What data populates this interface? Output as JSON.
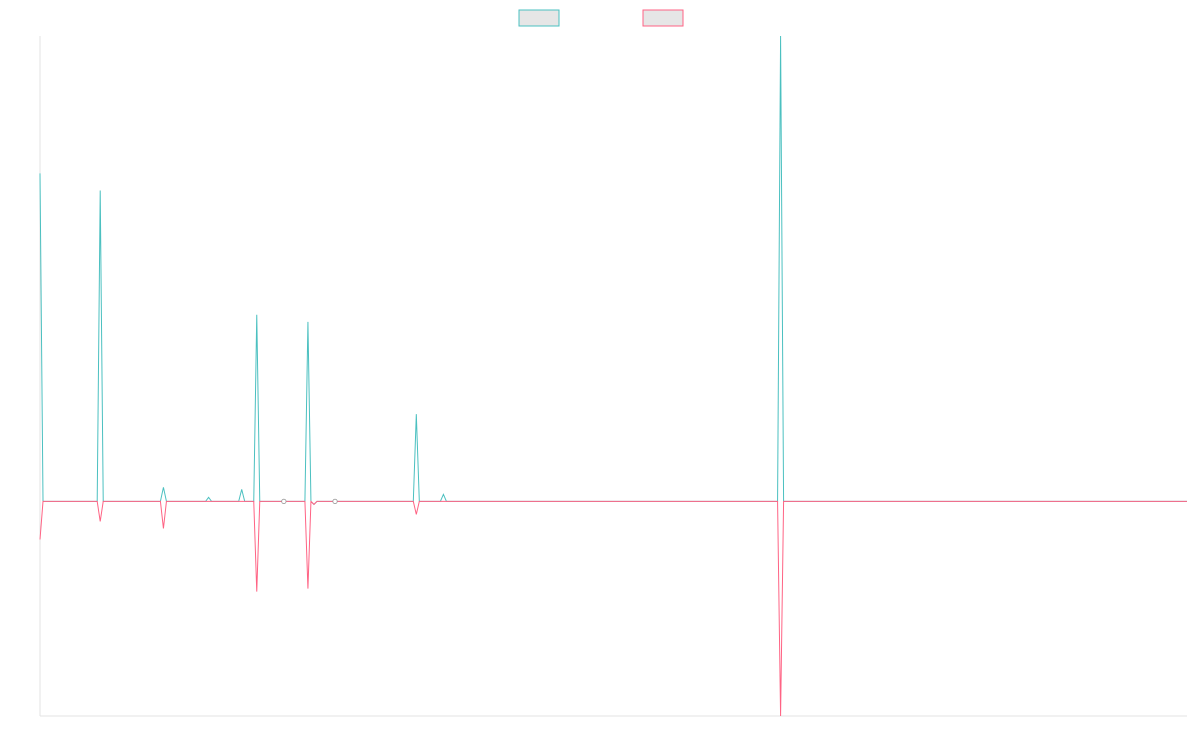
{
  "chart_data": {
    "type": "line",
    "title": "",
    "xlabel": "",
    "ylabel": "",
    "x": [
      0,
      1,
      2,
      3,
      4,
      5,
      6,
      7,
      8,
      9,
      10,
      11,
      12,
      13,
      14,
      15,
      16,
      17,
      18,
      19,
      20,
      21,
      22,
      23,
      24,
      25,
      26,
      27,
      28,
      29,
      30,
      31,
      32,
      33,
      34,
      35,
      36,
      37,
      38,
      39,
      40,
      41,
      42,
      43,
      44,
      45,
      46,
      47,
      48,
      49,
      50,
      51,
      52,
      53,
      54,
      55,
      56,
      57,
      58,
      59,
      60,
      61,
      62,
      63,
      64,
      65,
      66,
      67,
      68,
      69,
      70,
      71,
      72,
      73,
      74,
      75,
      76,
      77,
      78,
      79,
      80,
      81,
      82,
      83,
      84,
      85,
      86,
      87,
      88,
      89,
      90,
      91,
      92,
      93,
      94,
      95,
      96,
      97,
      98,
      99,
      100,
      101,
      102,
      103,
      104,
      105,
      106,
      107,
      108,
      109,
      110,
      111,
      112,
      113,
      114,
      115,
      116,
      117,
      118,
      119,
      120,
      121,
      122,
      123,
      124,
      125,
      126,
      127,
      128,
      129,
      130,
      131,
      132,
      133,
      134,
      135,
      136,
      137,
      138,
      139,
      140,
      141,
      142,
      143,
      144,
      145,
      146,
      147,
      148,
      149,
      150,
      151,
      152,
      153,
      154,
      155,
      156,
      157,
      158,
      159,
      160,
      161,
      162,
      163,
      164,
      165,
      166,
      167,
      168,
      169,
      170,
      171,
      172,
      173,
      174,
      175,
      176,
      177,
      178,
      179,
      180,
      181,
      182,
      183,
      184,
      185,
      186,
      187,
      188,
      189,
      190,
      191,
      192,
      193,
      194,
      195,
      196,
      197,
      198,
      199,
      200,
      201,
      202,
      203,
      204,
      205,
      206,
      207,
      208,
      209,
      210,
      211,
      212,
      213,
      214,
      215,
      216,
      217,
      218,
      219,
      220,
      221,
      222,
      223,
      224,
      225,
      226,
      227,
      228,
      229,
      230,
      231,
      232,
      233,
      234,
      235,
      236,
      237,
      238,
      239,
      240,
      241,
      242,
      243,
      244,
      245,
      246,
      247,
      248,
      249,
      250,
      251,
      252,
      253,
      254,
      255,
      256,
      257,
      258,
      259,
      260,
      261,
      262,
      263,
      264,
      265,
      266,
      267,
      268,
      269,
      270,
      271,
      272,
      273,
      274,
      275,
      276,
      277,
      278,
      279,
      280,
      281,
      282,
      283,
      284,
      285,
      286,
      287,
      288,
      289,
      290,
      291,
      292,
      293,
      294,
      295,
      296,
      297,
      298,
      299,
      300,
      301,
      302,
      303,
      304,
      305,
      306,
      307,
      308,
      309,
      310,
      311,
      312,
      313,
      314,
      315,
      316,
      317,
      318,
      319,
      320,
      321,
      322,
      323,
      324,
      325,
      326,
      327,
      328,
      329,
      330,
      331,
      332,
      333,
      334,
      335,
      336,
      337,
      338,
      339,
      340,
      341,
      342,
      343,
      344,
      345,
      346,
      347,
      348,
      349,
      350,
      351,
      352,
      353,
      354,
      355,
      356,
      357,
      358,
      359,
      360,
      361,
      362,
      363,
      364,
      365,
      366,
      367,
      368,
      369,
      370,
      371,
      372,
      373,
      374,
      375,
      376,
      377,
      378,
      379,
      380,
      381
    ],
    "xlim": [
      0,
      381
    ],
    "ylim": [
      -214,
      464
    ],
    "grid": false,
    "legend": "top-center",
    "series": [
      {
        "color": "#4bc0c0",
        "fill": "#e6e6e6",
        "spikes": [
          {
            "x": 0,
            "y": 327
          },
          {
            "x": 20,
            "y": 310
          },
          {
            "x": 41,
            "y": 14
          },
          {
            "x": 56,
            "y": 4
          },
          {
            "x": 67,
            "y": 12
          },
          {
            "x": 72,
            "y": 186
          },
          {
            "x": 81,
            "y": 0
          },
          {
            "x": 89,
            "y": 179
          },
          {
            "x": 91,
            "y": -3
          },
          {
            "x": 98,
            "y": 0
          },
          {
            "x": 125,
            "y": 87
          },
          {
            "x": 134,
            "y": 7
          },
          {
            "x": 246,
            "y": 464
          }
        ]
      },
      {
        "color": "#ff6384",
        "fill": "#e6e6e6",
        "spikes": [
          {
            "x": 0,
            "y": -38
          },
          {
            "x": 20,
            "y": -20
          },
          {
            "x": 41,
            "y": -27
          },
          {
            "x": 72,
            "y": -90
          },
          {
            "x": 81,
            "y": 0
          },
          {
            "x": 89,
            "y": -87
          },
          {
            "x": 91,
            "y": -3
          },
          {
            "x": 98,
            "y": 0
          },
          {
            "x": 125,
            "y": -13
          },
          {
            "x": 246,
            "y": -214
          }
        ]
      }
    ]
  }
}
